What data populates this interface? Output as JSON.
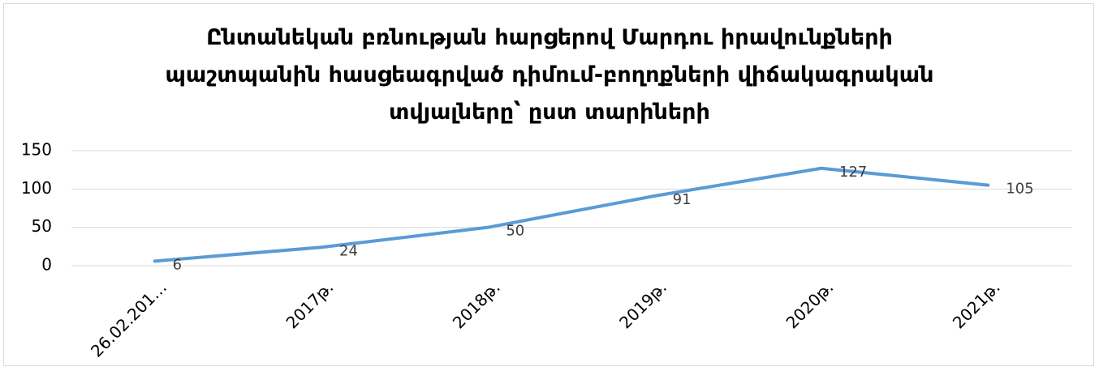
{
  "chart_data": {
    "type": "line",
    "title": "Ընտանեկան բռնության հարցերով Մարդու իրավունքների պաշտպանին հասցեագրված դիմում-բողոքների վիճակագրական տվյալները՝ ըստ տարիների",
    "categories": [
      "26.02.201…",
      "2017թ.",
      "2018թ.",
      "2019թ.",
      "2020թ.",
      "2021թ."
    ],
    "series": [
      {
        "name": "",
        "color": "#5b9bd5",
        "values": [
          6,
          24,
          50,
          91,
          127,
          105
        ]
      }
    ],
    "ylim": [
      0,
      150
    ],
    "yticks": [
      0,
      50,
      100,
      150
    ],
    "grid": true
  }
}
